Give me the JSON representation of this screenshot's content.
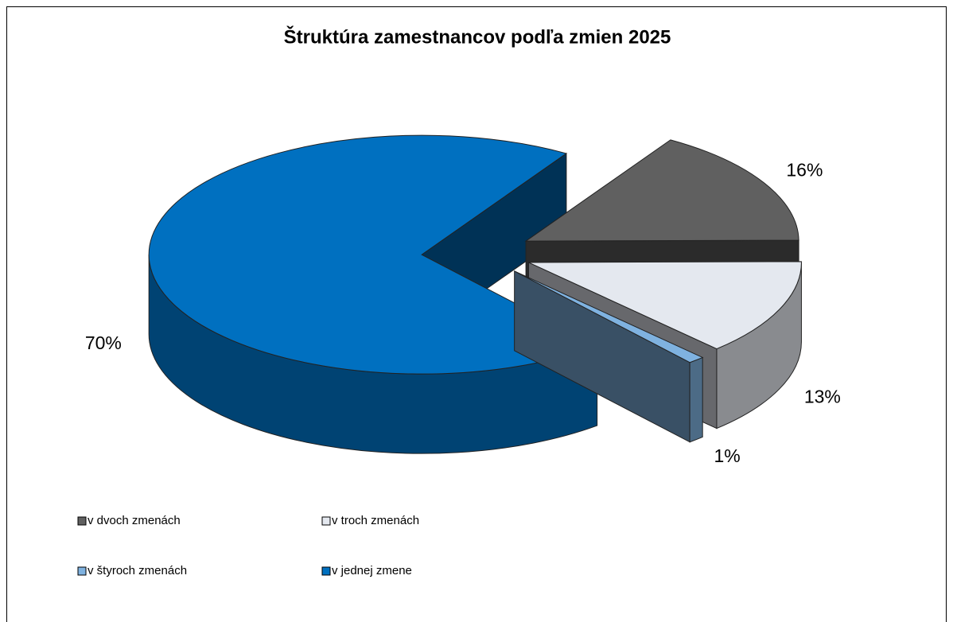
{
  "chart_data": {
    "type": "pie",
    "title": "Štruktúra zamestnancov podľa zmien 2025",
    "categories": [
      "v dvoch zmenách",
      "v troch zmenách",
      "v štyroch zmenách",
      "v jednej zmene"
    ],
    "values": [
      16,
      13,
      1,
      70
    ],
    "value_labels": [
      "16%",
      "13%",
      "1%",
      "70%"
    ],
    "colors": [
      "#606060",
      "#e4e8ef",
      "#7fb2e0",
      "#0070c0"
    ],
    "legend": "bottom"
  }
}
